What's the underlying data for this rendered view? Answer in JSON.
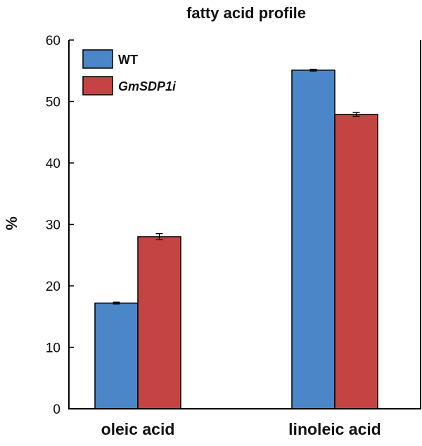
{
  "chart_data": {
    "type": "bar",
    "title": "fatty acid profile",
    "xlabel": "",
    "ylabel": "%",
    "ylim": [
      0,
      60
    ],
    "yticks": [
      0,
      10,
      20,
      30,
      40,
      50,
      60
    ],
    "categories": [
      "oleic acid",
      "linoleic acid"
    ],
    "series": [
      {
        "name": "WT",
        "color": "#4a86c8",
        "values": [
          17.2,
          55.1
        ],
        "errors": [
          0.15,
          0.15
        ]
      },
      {
        "name": "GmSDP1i",
        "color": "#c44444",
        "values": [
          28.0,
          47.9
        ],
        "errors": [
          0.5,
          0.3
        ]
      }
    ],
    "legend": "top-left"
  }
}
